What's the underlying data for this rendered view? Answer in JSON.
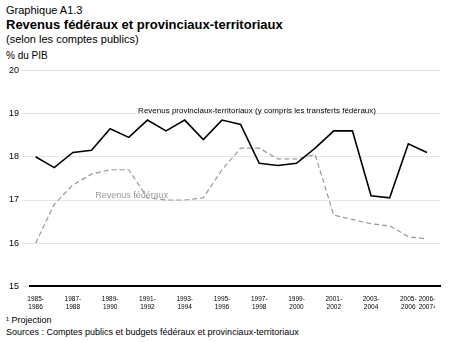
{
  "chart_data": {
    "type": "line",
    "chart_number": "Graphique A1.3",
    "title": "Revenus fédéraux et provinciaux-territoriaux",
    "subtitle": "(selon les comptes publics)",
    "ylabel": "% du PIB",
    "footnote": "¹ Projection",
    "source": "Sources : Comptes publics et budgets fédéraux et provinciaux-territoriaux",
    "x": [
      0,
      1,
      2,
      3,
      4,
      5,
      6,
      7,
      8,
      9,
      10,
      11,
      12,
      13,
      14,
      15,
      16,
      17,
      18,
      19,
      20,
      21
    ],
    "series": [
      {
        "name": "Revenus provinciaux-territoriaux (y compris les transferts fédéraux)",
        "color": "#000000",
        "line_style": "solid",
        "values": [
          18.0,
          17.75,
          18.1,
          18.15,
          18.65,
          18.45,
          18.85,
          18.6,
          18.85,
          18.4,
          18.85,
          18.75,
          17.85,
          17.8,
          17.85,
          18.2,
          18.6,
          18.6,
          17.1,
          17.05,
          18.3,
          18.1
        ]
      },
      {
        "name": "Revenus fédéraux",
        "color": "#999999",
        "line_style": "dashed",
        "values": [
          16.0,
          16.9,
          17.35,
          17.6,
          17.7,
          17.7,
          17.05,
          17.0,
          17.0,
          17.05,
          17.7,
          18.2,
          18.2,
          17.95,
          17.95,
          18.05,
          16.65,
          16.55,
          16.45,
          16.4,
          16.15,
          16.1
        ]
      }
    ],
    "annotations": [
      {
        "text": "Revenus provinciaux-territoriaux (y compris les transferts fédéraux)",
        "x": 5.5,
        "y": 18.97,
        "color": "#000000"
      },
      {
        "text": "Revenus fédéraux",
        "x": 3.2,
        "y": 17.2,
        "color": "#999999"
      }
    ],
    "xlim": [
      -0.3,
      21.7
    ],
    "xticks": [
      {
        "value": 0,
        "label": "1985-\n1986"
      },
      {
        "value": 2,
        "label": "1987-\n1988"
      },
      {
        "value": 4,
        "label": "1989-\n1990"
      },
      {
        "value": 6,
        "label": "1991-\n1992"
      },
      {
        "value": 8,
        "label": "1993-\n1994"
      },
      {
        "value": 10,
        "label": "1995-\n1996"
      },
      {
        "value": 12,
        "label": "1997-\n1998"
      },
      {
        "value": 14,
        "label": "1999-\n2000"
      },
      {
        "value": 16,
        "label": "2001-\n2002"
      },
      {
        "value": 18,
        "label": "2003-\n2004"
      },
      {
        "value": 20,
        "label": "2005-\n2006"
      },
      {
        "value": 21,
        "label": "2006-\n2007¹"
      }
    ],
    "ylim": [
      15,
      20
    ],
    "yticks": [
      15,
      16,
      17,
      18,
      19,
      20
    ],
    "grid": true
  }
}
